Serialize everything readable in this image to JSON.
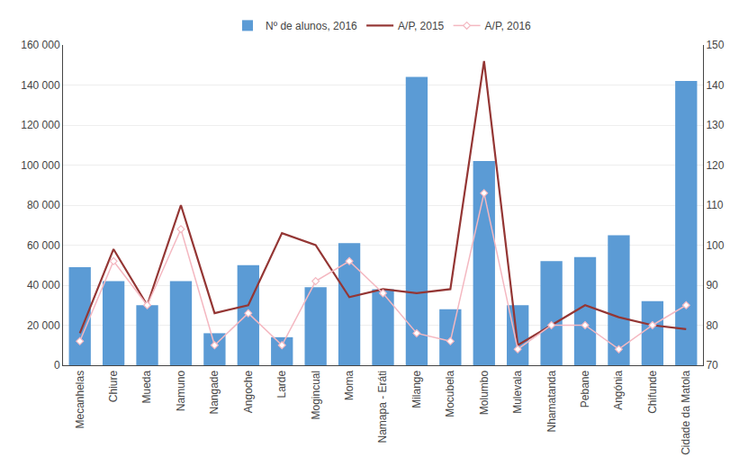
{
  "chart_data": {
    "type": "bar",
    "categories": [
      "Mecanhelas",
      "Chiure",
      "Mueda",
      "Namuno",
      "Nangade",
      "Angoche",
      "Larde",
      "Mogincual",
      "Moma",
      "Namapa - Eráti",
      "Milange",
      "Mocubela",
      "Molumbo",
      "Mulevala",
      "Nhamatanda",
      "Pebane",
      "Angónia",
      "Chifunde",
      "Cidade da Matola"
    ],
    "series": [
      {
        "name": "Nº de alunos, 2016",
        "type": "bar",
        "color": "#5b9bd5",
        "values": [
          49000,
          42000,
          30000,
          42000,
          16000,
          50000,
          14000,
          39000,
          61000,
          38000,
          144000,
          28000,
          102000,
          30000,
          52000,
          54000,
          65000,
          32000,
          142000
        ]
      },
      {
        "name": "A/P, 2015",
        "type": "line",
        "color": "#943634",
        "line_style": "solid",
        "axis": "y2",
        "values": [
          78,
          99,
          85,
          110,
          83,
          85,
          103,
          100,
          87,
          89,
          88,
          89,
          146,
          75,
          80,
          85,
          82,
          80,
          79
        ]
      },
      {
        "name": "A/P, 2016",
        "type": "line",
        "color": "#f4b8c1",
        "line_style": "solid",
        "marker": "diamond",
        "axis": "y2",
        "values": [
          76,
          96,
          85,
          104,
          75,
          83,
          75,
          91,
          96,
          88,
          78,
          76,
          113,
          74,
          80,
          80,
          74,
          80,
          85
        ]
      }
    ],
    "ylim": [
      0,
      160000
    ],
    "yticks": [
      0,
      {
        "value": 20000,
        "label": "20 000"
      },
      {
        "value": 40000,
        "label": "40 000"
      },
      {
        "value": 60000,
        "label": "60 000"
      },
      {
        "value": 80000,
        "label": "80 000"
      },
      {
        "value": 100000,
        "label": "100 000"
      },
      {
        "value": 120000,
        "label": "120 000"
      },
      {
        "value": 140000,
        "label": "140 000"
      },
      {
        "value": 160000,
        "label": "160 000"
      }
    ],
    "y2lim": [
      70,
      150
    ],
    "y2ticks": [
      70,
      80,
      90,
      100,
      110,
      120,
      130,
      140,
      150
    ],
    "grid": true,
    "legend": "top"
  }
}
